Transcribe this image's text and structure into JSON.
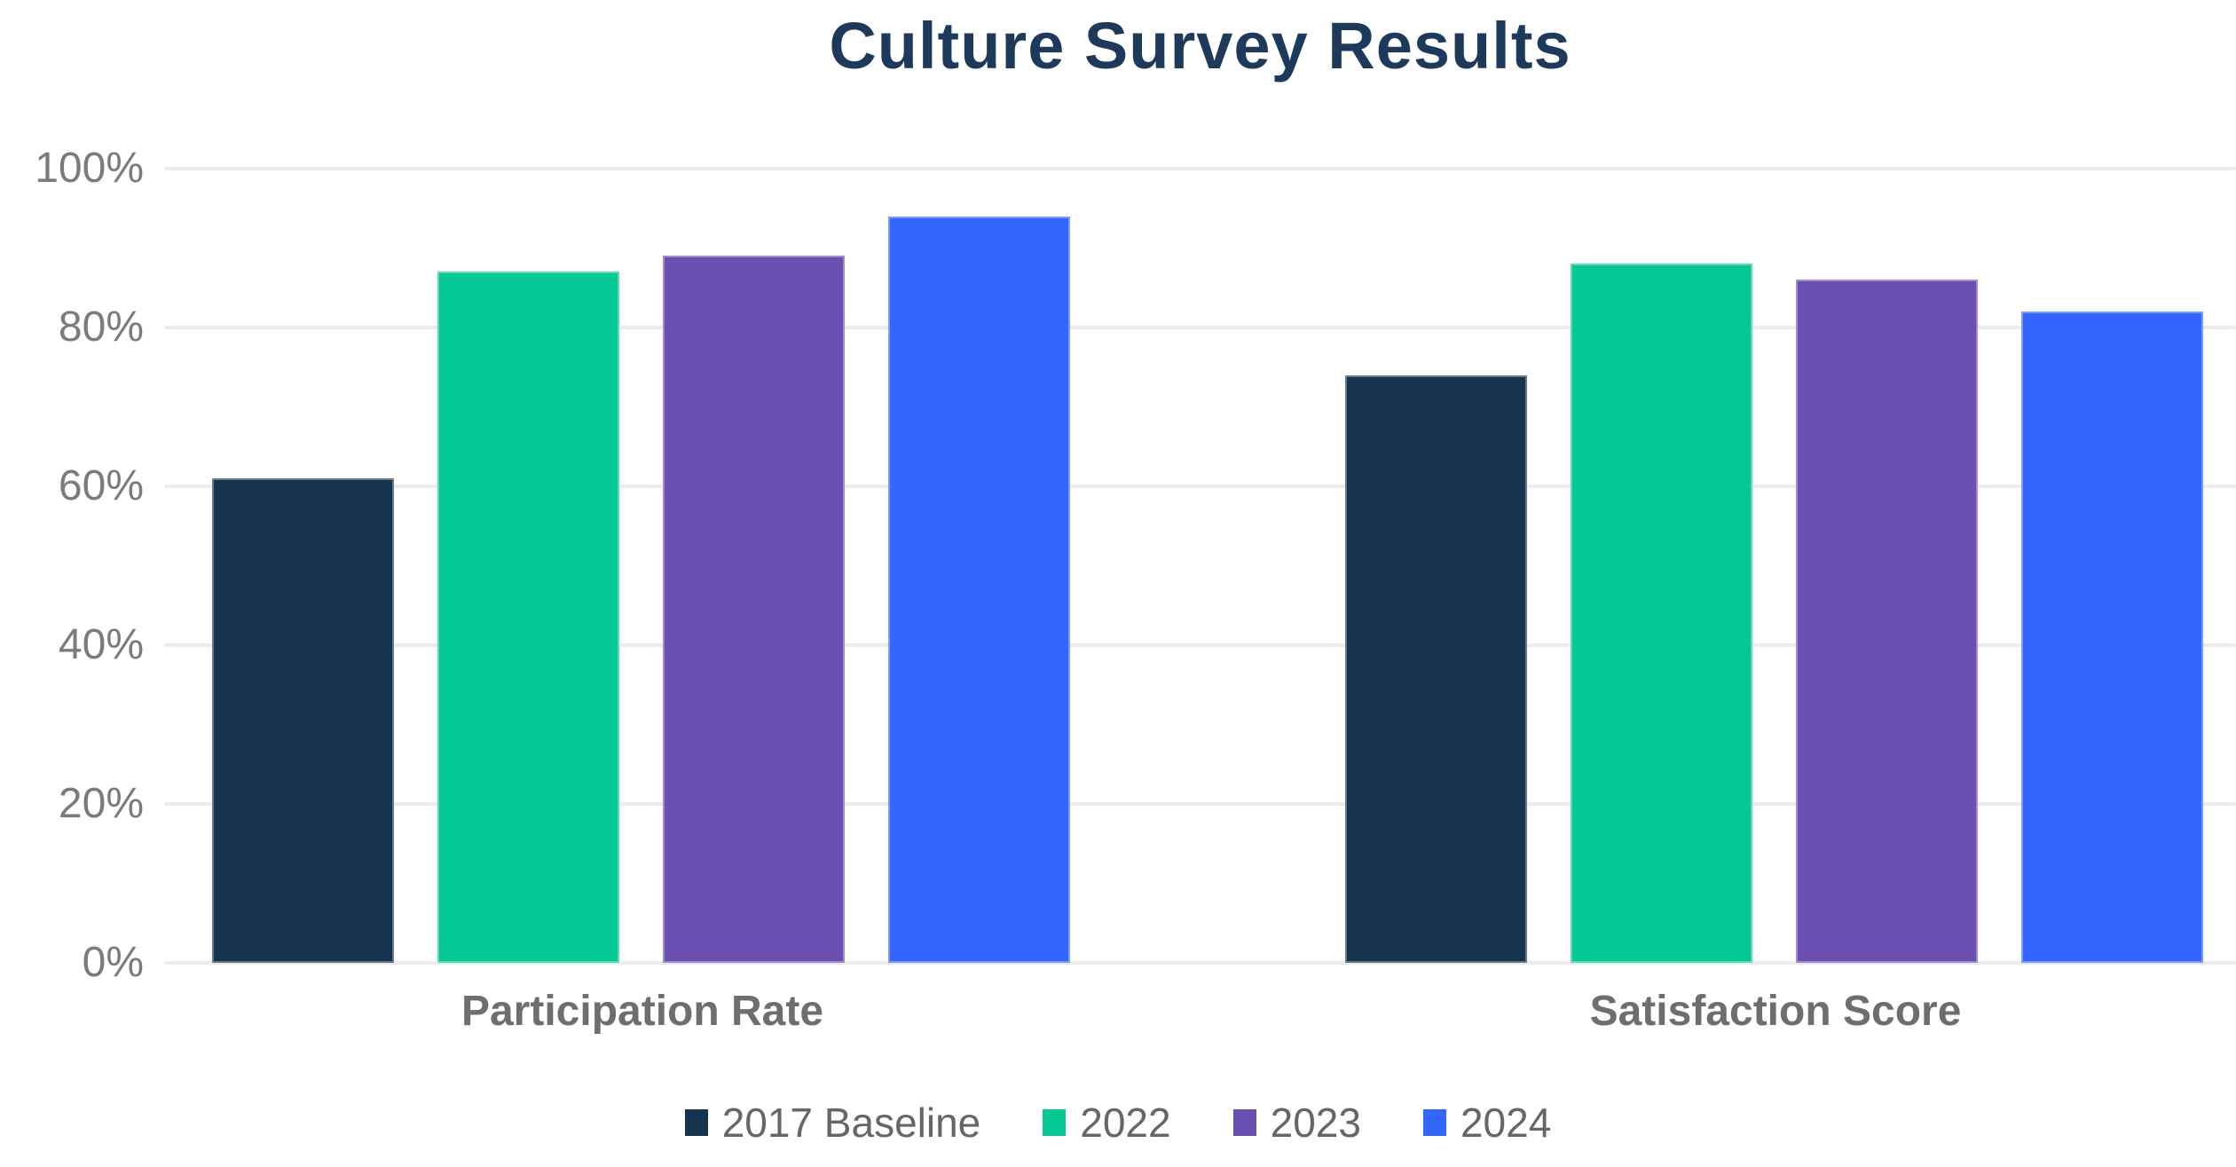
{
  "title": "Culture Survey Results",
  "colors": {
    "background": "#ffffff",
    "title_text": "#1d3a5c",
    "axis_text": "#7b7b7b",
    "category_text": "#6e6e6e",
    "legend_text": "#666666",
    "gridline": "#ececec"
  },
  "chart_data": {
    "type": "bar",
    "title": "Culture Survey Results",
    "categories": [
      "Participation Rate",
      "Satisfaction Score"
    ],
    "series": [
      {
        "name": "2017 Baseline",
        "color": "#17344f",
        "values": [
          61,
          74
        ]
      },
      {
        "name": "2022",
        "color": "#04c893",
        "values": [
          87,
          88
        ]
      },
      {
        "name": "2023",
        "color": "#6b50b2",
        "values": [
          89,
          86
        ]
      },
      {
        "name": "2024",
        "color": "#3366fe",
        "values": [
          94,
          82
        ]
      }
    ],
    "xlabel": "",
    "ylabel": "",
    "ylim": [
      0,
      100
    ],
    "y_ticks": [
      "0%",
      "20%",
      "40%",
      "60%",
      "80%",
      "100%"
    ],
    "y_tick_values": [
      0,
      20,
      40,
      60,
      80,
      100
    ],
    "grid": true,
    "legend_position": "bottom"
  }
}
